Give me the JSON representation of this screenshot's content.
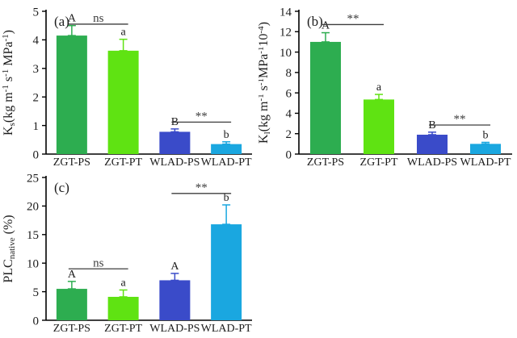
{
  "figure": {
    "background": "#ffffff",
    "axis_color": "#000000",
    "text_color": "#1c1c1c",
    "bracket_color": "#3d3d3d",
    "bar_colors": [
      "#2dad50",
      "#5fe312",
      "#3a4bc9",
      "#1aa7e0"
    ]
  },
  "categories": [
    "ZGT-PS",
    "ZGT-PT",
    "WLAD-PS",
    "WLAD-PT"
  ],
  "chart_data": [
    {
      "type": "bar",
      "panel_label": "(a)",
      "title": "",
      "xlabel": "",
      "ylabel": "Ks(kg m-1 s-1 MPa-1)",
      "ylabel_rich": [
        {
          "t": "K"
        },
        {
          "t": "s",
          "style": "sub"
        },
        {
          "t": "(kg m"
        },
        {
          "t": "-1",
          "style": "sup"
        },
        {
          "t": " s"
        },
        {
          "t": "-1",
          "style": "sup"
        },
        {
          "t": " MPa"
        },
        {
          "t": "-1",
          "style": "sup"
        },
        {
          "t": ")"
        }
      ],
      "categories": [
        "ZGT-PS",
        "ZGT-PT",
        "WLAD-PS",
        "WLAD-PT"
      ],
      "values": [
        4.15,
        3.62,
        0.78,
        0.35
      ],
      "errors_upper": [
        0.35,
        0.4,
        0.1,
        0.08
      ],
      "letters": [
        "A",
        "a",
        "B",
        "b"
      ],
      "bar_colors": [
        "#2dad50",
        "#5fe312",
        "#3a4bc9",
        "#1aa7e0"
      ],
      "ylim": [
        0,
        5
      ],
      "yticks": [
        0,
        1,
        2,
        3,
        4,
        5
      ],
      "grid": false,
      "legend": "none",
      "significance": [
        {
          "from": 0,
          "to": 1,
          "label": "ns",
          "y": 4.55
        },
        {
          "from": 2,
          "to": 3,
          "label": "**",
          "y": 1.12
        }
      ]
    },
    {
      "type": "bar",
      "panel_label": "(b)",
      "title": "",
      "xlabel": "",
      "ylabel": "Kl(kg m-1 s-1MPa-110-4)",
      "ylabel_rich": [
        {
          "t": "K"
        },
        {
          "t": "l",
          "style": "sub"
        },
        {
          "t": "(kg m"
        },
        {
          "t": "-1",
          "style": "sup"
        },
        {
          "t": " s"
        },
        {
          "t": "-1",
          "style": "sup"
        },
        {
          "t": "MPa"
        },
        {
          "t": "-1",
          "style": "sup"
        },
        {
          "t": "10"
        },
        {
          "t": "-4",
          "style": "sup"
        },
        {
          "t": ")"
        }
      ],
      "categories": [
        "ZGT-PS",
        "ZGT-PT",
        "WLAD-PS",
        "WLAD-PT"
      ],
      "values": [
        11.0,
        5.35,
        1.9,
        1.0
      ],
      "errors_upper": [
        0.9,
        0.5,
        0.25,
        0.15
      ],
      "letters": [
        "A",
        "a",
        "B",
        "b"
      ],
      "bar_colors": [
        "#2dad50",
        "#5fe312",
        "#3a4bc9",
        "#1aa7e0"
      ],
      "ylim": [
        0,
        14
      ],
      "yticks": [
        0,
        2,
        4,
        6,
        8,
        10,
        12,
        14
      ],
      "grid": false,
      "legend": "none",
      "significance": [
        {
          "from": 0,
          "to": 1,
          "label": "**",
          "y": 12.7
        },
        {
          "from": 2,
          "to": 3,
          "label": "**",
          "y": 2.85
        }
      ]
    },
    {
      "type": "bar",
      "panel_label": "(c)",
      "title": "",
      "xlabel": "",
      "ylabel": "PLCnative (%)",
      "ylabel_rich": [
        {
          "t": "PLC"
        },
        {
          "t": "native",
          "style": "sub"
        },
        {
          "t": " (%)"
        }
      ],
      "categories": [
        "ZGT-PS",
        "ZGT-PT",
        "WLAD-PS",
        "WLAD-PT"
      ],
      "values": [
        5.5,
        4.1,
        7.0,
        16.8
      ],
      "errors_upper": [
        1.3,
        1.2,
        1.2,
        3.4
      ],
      "letters": [
        "A",
        "a",
        "A",
        "b"
      ],
      "bar_colors": [
        "#2dad50",
        "#5fe312",
        "#3a4bc9",
        "#1aa7e0"
      ],
      "ylim": [
        0,
        25
      ],
      "yticks": [
        0,
        5,
        10,
        15,
        20,
        25
      ],
      "grid": false,
      "legend": "none",
      "significance": [
        {
          "from": 0,
          "to": 1,
          "label": "ns",
          "y": 9.0
        },
        {
          "from": 2,
          "to": 3,
          "label": "**",
          "y": 22.2
        }
      ]
    }
  ]
}
